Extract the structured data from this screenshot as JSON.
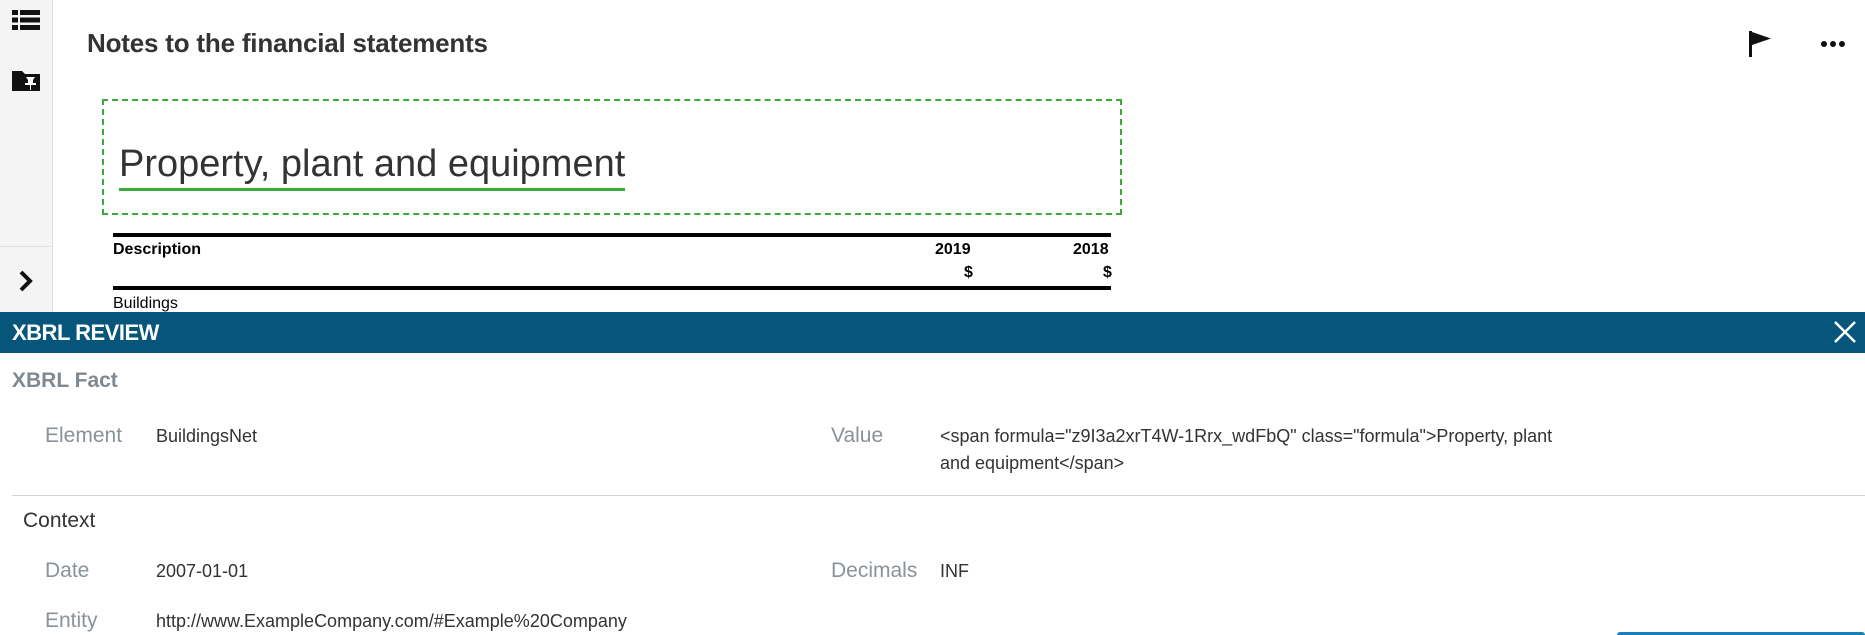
{
  "header": {
    "title": "Notes to the financial statements"
  },
  "document": {
    "heading": "Property, plant and equipment",
    "table": {
      "columns": [
        "Description",
        "2019",
        "2018"
      ],
      "units": [
        "$",
        "$"
      ],
      "rows": [
        "Buildings"
      ]
    }
  },
  "review_panel": {
    "title": "XBRL REVIEW",
    "fact_section": "XBRL Fact",
    "element_label": "Element",
    "element_value": "BuildingsNet",
    "value_label": "Value",
    "value_line1": "<span formula=\"z9I3a2xrT4W-1Rrx_wdFbQ\" class=\"formula\">Property, plant",
    "value_line2": "and equipment</span>",
    "context_section": "Context",
    "date_label": "Date",
    "date_value": "2007-01-01",
    "decimals_label": "Decimals",
    "decimals_value": "INF",
    "entity_label": "Entity",
    "entity_value": "http://www.ExampleCompany.com/#Example%20Company"
  },
  "icons": {
    "rail": [
      "list-icon",
      "pinned-folder-icon",
      "chevron-right-icon"
    ],
    "header": [
      "flag-icon",
      "more-horizontal-icon"
    ],
    "panel": [
      "close-icon"
    ]
  },
  "colors": {
    "panel_bar": "#06557a",
    "highlight": "#3aaa3a"
  }
}
